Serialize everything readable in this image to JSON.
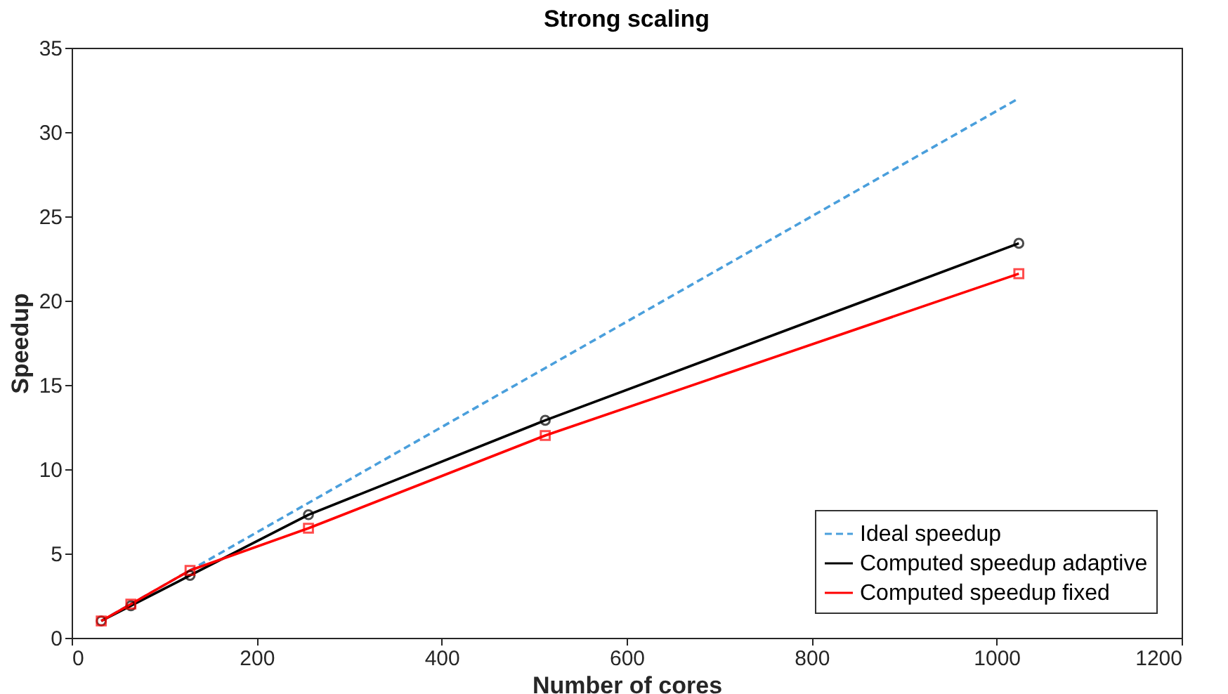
{
  "chart_data": {
    "type": "line",
    "title": "Strong scaling",
    "xlabel": "Number of cores",
    "ylabel": "Speedup",
    "x": [
      32,
      64,
      128,
      256,
      512,
      1024
    ],
    "series": [
      {
        "name": "Ideal speedup",
        "color": "#4a9fdc",
        "values": [
          1,
          2,
          4,
          8,
          16,
          32
        ],
        "line_style": "dashed",
        "marker": "none"
      },
      {
        "name": "Computed speedup adaptive",
        "color": "#000000",
        "values": [
          1,
          1.9,
          3.7,
          7.3,
          12.9,
          23.4
        ],
        "line_style": "solid",
        "marker": "circle"
      },
      {
        "name": "Computed speedup fixed",
        "color": "#ff0000",
        "values": [
          1,
          2.0,
          4.0,
          6.5,
          12.0,
          21.6
        ],
        "line_style": "solid",
        "marker": "square"
      }
    ],
    "xlim": [
      0,
      1200
    ],
    "xticks": [
      0,
      200,
      400,
      600,
      800,
      1000,
      1200
    ],
    "ylim": [
      0,
      35
    ],
    "yticks": [
      0,
      5,
      10,
      15,
      20,
      25,
      30,
      35
    ],
    "grid": false,
    "legend": "bottom right"
  }
}
